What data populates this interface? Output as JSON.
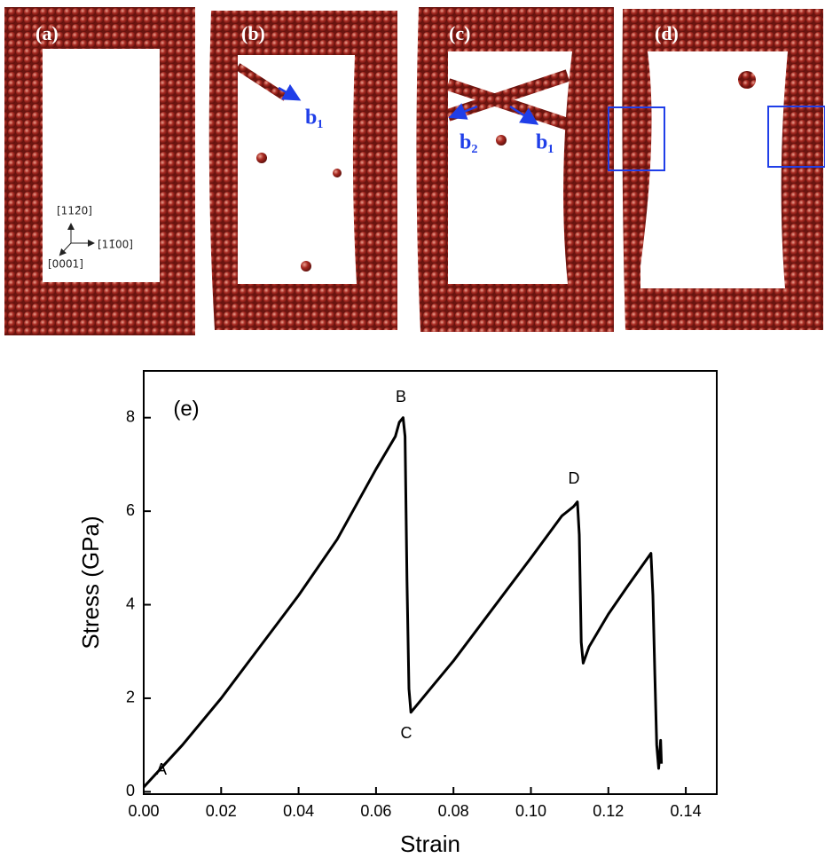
{
  "panels": {
    "labels": [
      "(a)",
      "(b)",
      "(c)",
      "(d)"
    ],
    "vectors": [
      "b₁",
      "b₂",
      "b₁"
    ],
    "axes": [
      "[112̄0]",
      "[11̄00]",
      "[0001]"
    ]
  },
  "chart_data": {
    "type": "line",
    "color": "#000000",
    "xlabel": "Strain",
    "ylabel": "Stress (GPa)",
    "annotations": [
      "(e)",
      "A",
      "B",
      "C",
      "D"
    ],
    "x": [
      0,
      0.01,
      0.02,
      0.03,
      0.04,
      0.05,
      0.06,
      0.065,
      0.066,
      0.067,
      0.0675,
      0.068,
      0.0685,
      0.069,
      0.075,
      0.08,
      0.09,
      0.1,
      0.108,
      0.111,
      0.112,
      0.1125,
      0.113,
      0.1135,
      0.115,
      0.12,
      0.125,
      0.131,
      0.1315,
      0.132,
      0.1325,
      0.133,
      0.1335,
      0.1337
    ],
    "values": [
      0.1,
      1.0,
      2.0,
      3.1,
      4.2,
      5.4,
      6.9,
      7.6,
      7.9,
      8.0,
      7.6,
      4.5,
      2.2,
      1.7,
      2.3,
      2.8,
      3.9,
      5.0,
      5.9,
      6.1,
      6.2,
      5.5,
      3.2,
      2.75,
      3.1,
      3.8,
      4.4,
      5.1,
      4.2,
      2.5,
      1.0,
      0.5,
      1.1,
      0.6
    ],
    "xlim": [
      0,
      0.148
    ],
    "ylim": [
      -0.05,
      9.0
    ],
    "xticks": [
      {
        "value": 0,
        "label": "0.00"
      },
      0.02,
      0.04,
      0.06,
      0.08,
      {
        "value": 0.1,
        "label": "0.10"
      },
      0.12,
      0.14
    ],
    "yticks": [
      0,
      2,
      4,
      6,
      8
    ]
  }
}
